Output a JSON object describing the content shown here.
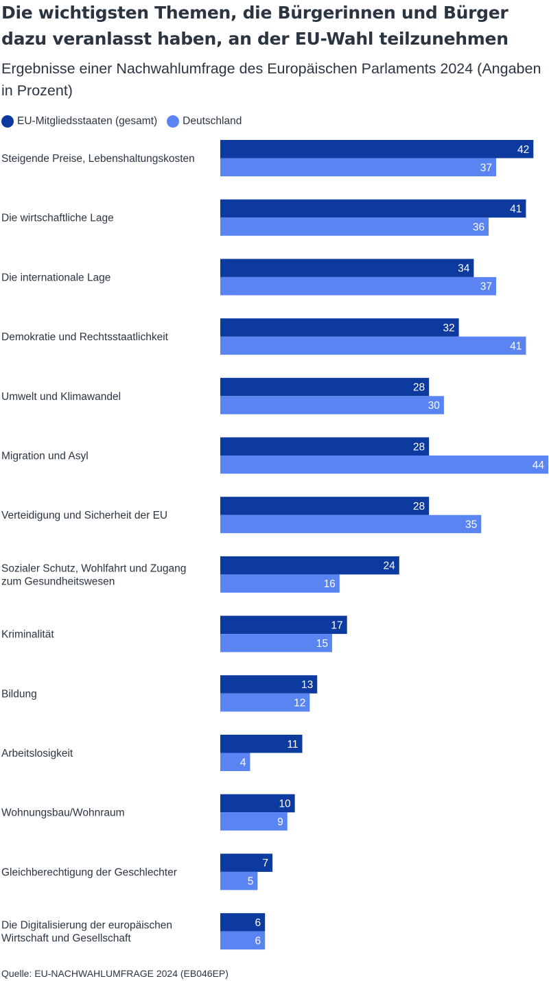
{
  "chart_data": {
    "type": "bar",
    "orientation": "horizontal",
    "title": "Die wichtigsten Themen, die Bürgerinnen und Bürger dazu veranlasst haben, an der EU-Wahl teilzunehmen",
    "subtitle": "Ergebnisse einer Nachwahlumfrage des Europäischen Parlaments 2024 (Angaben in Prozent)",
    "categories": [
      [
        "Steigende Preise, Lebenshaltungskosten"
      ],
      [
        "Die wirtschaftliche Lage"
      ],
      [
        "Die internationale Lage"
      ],
      [
        "Demokratie und Rechtsstaatlichkeit"
      ],
      [
        "Umwelt und Klimawandel"
      ],
      [
        "Migration und Asyl"
      ],
      [
        "Verteidigung und Sicherheit der EU"
      ],
      [
        "Sozialer Schutz, Wohlfahrt und Zugang",
        "zum Gesundheitswesen"
      ],
      [
        "Kriminalität"
      ],
      [
        "Bildung"
      ],
      [
        "Arbeitslosigkeit"
      ],
      [
        "Wohnungsbau/Wohnraum"
      ],
      [
        "Gleichberechtigung der Geschlechter"
      ],
      [
        "Die Digitalisierung der europäischen",
        "Wirtschaft und Gesellschaft"
      ]
    ],
    "series": [
      {
        "name": "EU-Mitgliedsstaaten (gesamt)",
        "color": "#0d3a9e",
        "values": [
          42,
          41,
          34,
          32,
          28,
          28,
          28,
          24,
          17,
          13,
          11,
          10,
          7,
          6
        ]
      },
      {
        "name": "Deutschland",
        "color": "#5a84f1",
        "values": [
          37,
          36,
          37,
          41,
          30,
          44,
          35,
          16,
          15,
          12,
          4,
          9,
          5,
          6
        ]
      }
    ],
    "xlim": [
      0,
      44
    ],
    "legend_position": "top-left",
    "grid": false,
    "source": "Quelle: EU-NACHWAHLUMFRAGE 2024 (EB046EP)"
  }
}
